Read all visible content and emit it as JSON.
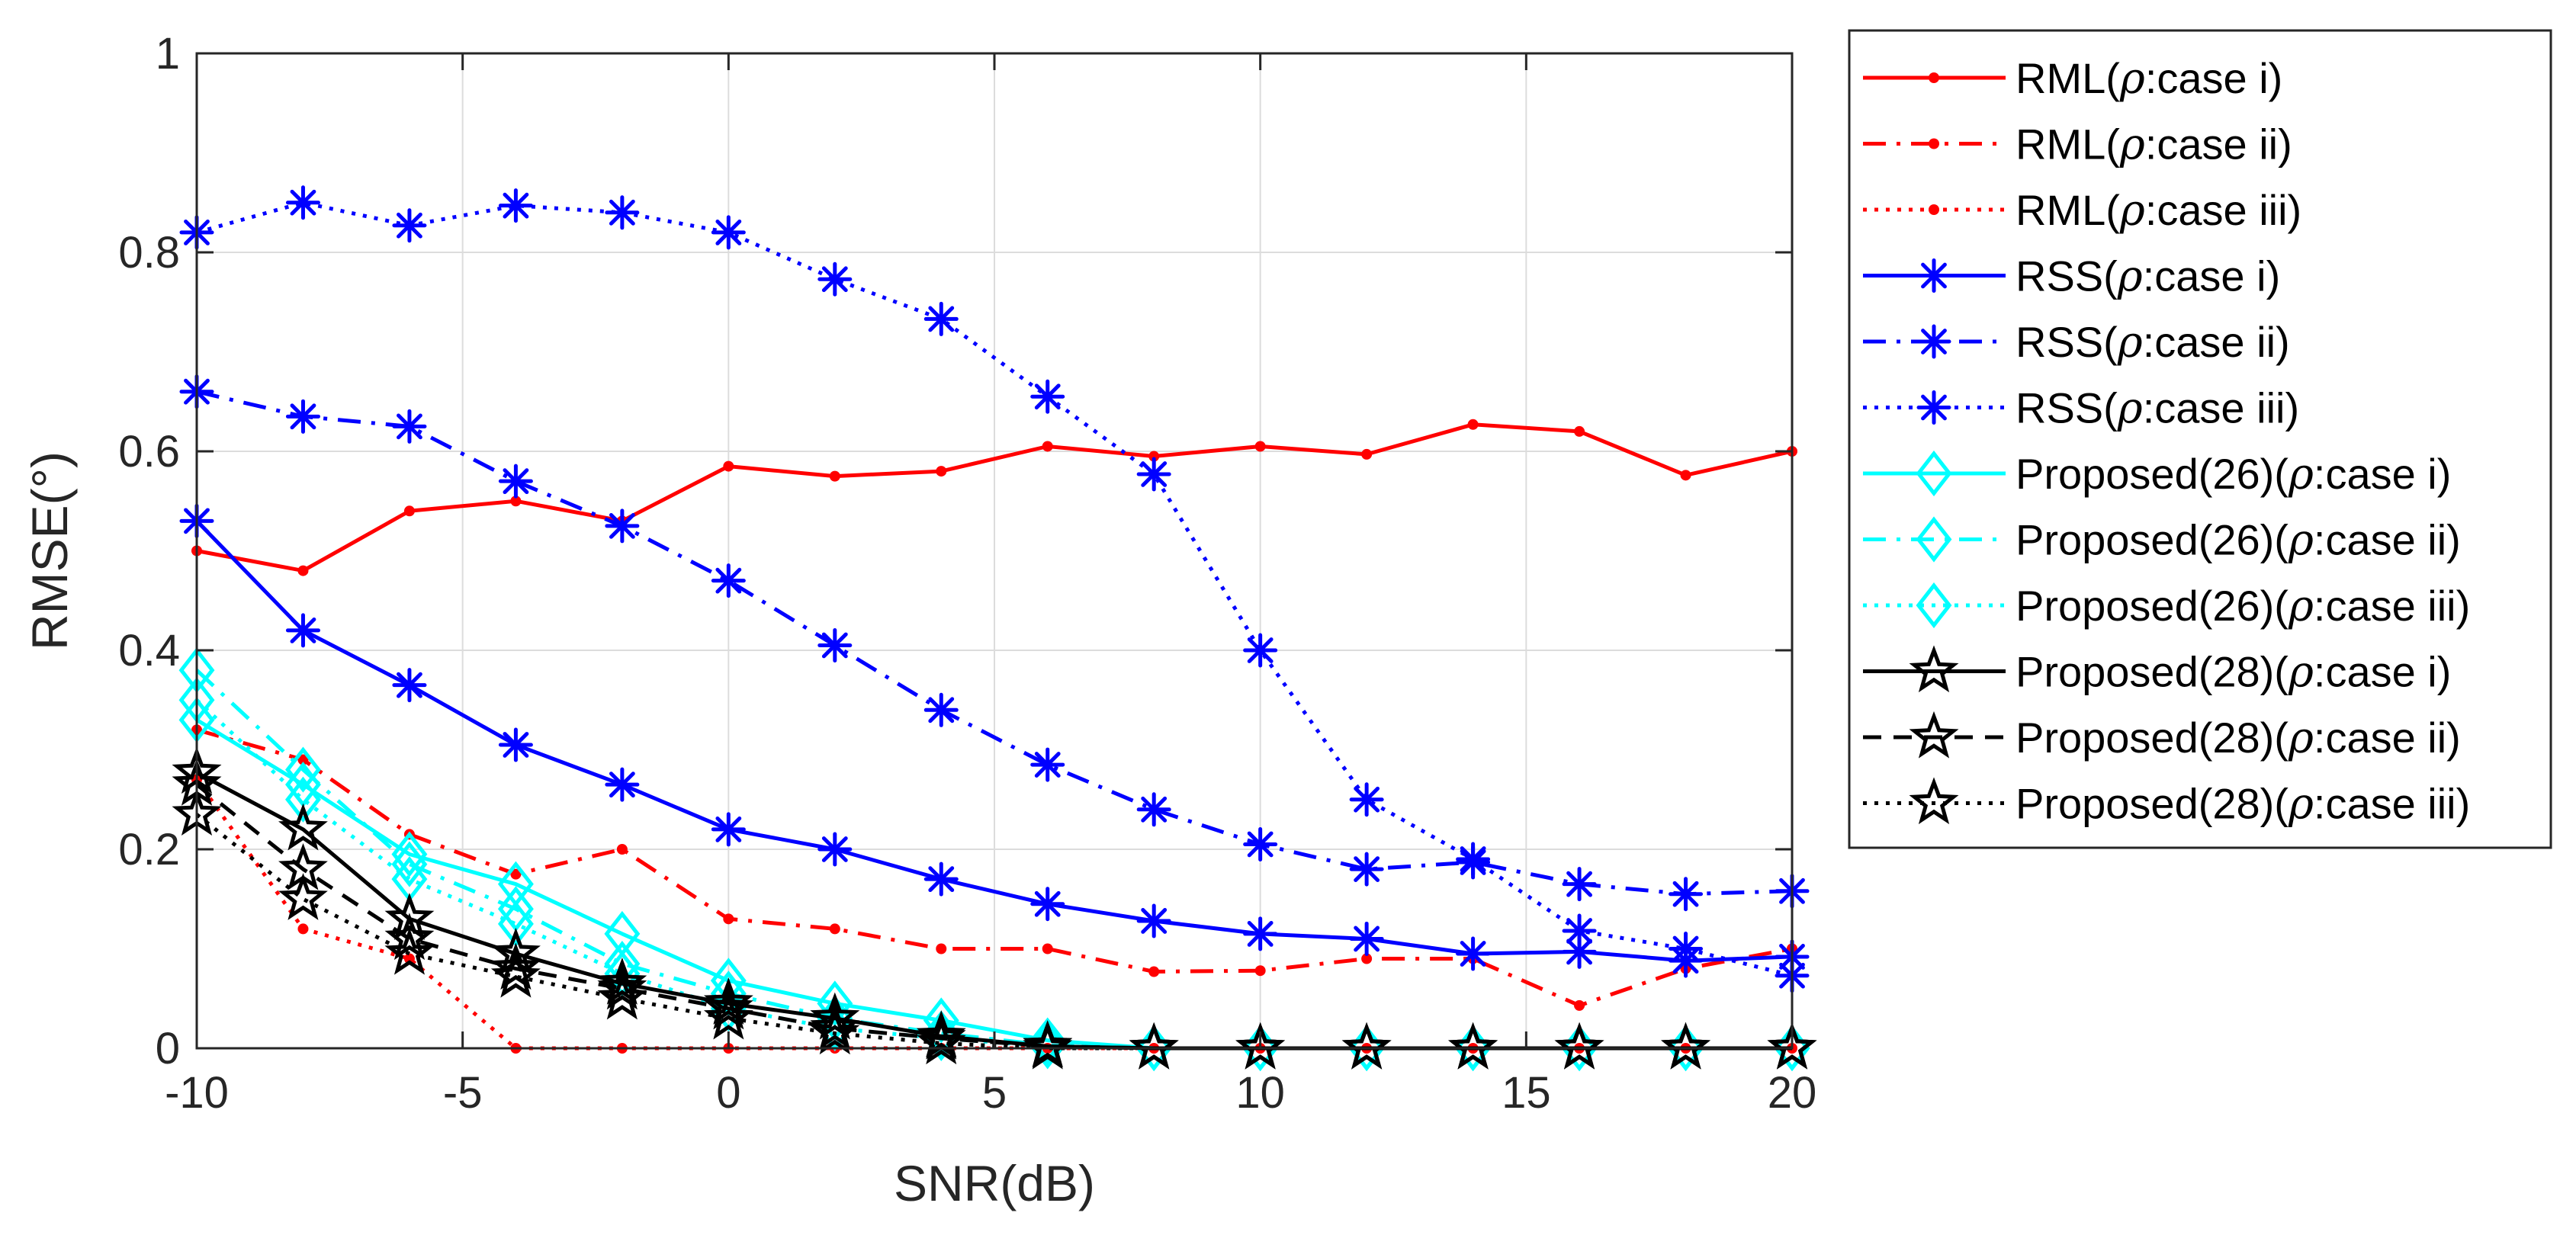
{
  "chart_data": {
    "type": "line",
    "title": "",
    "xlabel": "SNR(dB)",
    "ylabel": "RMSE(°)",
    "xlim": [
      -10,
      20
    ],
    "ylim": [
      0,
      1
    ],
    "grid": true,
    "legend_position": "outside-right",
    "x": [
      -10,
      -8,
      -6,
      -4,
      -2,
      0,
      2,
      4,
      6,
      8,
      10,
      12,
      14,
      16,
      18,
      20
    ],
    "x_tick_labels": [
      "-10",
      "-5",
      "0",
      "5",
      "10",
      "15",
      "20"
    ],
    "y_tick_labels": [
      "0",
      "0.2",
      "0.4",
      "0.6",
      "0.8",
      "1"
    ],
    "series": [
      {
        "name": "RML(ρ:case i)",
        "label_prefix": "RML(",
        "label_suffix": ":case i)",
        "color": "#ff0000",
        "line": "solid",
        "marker": "dot",
        "values": [
          0.5,
          0.48,
          0.54,
          0.55,
          0.53,
          0.585,
          0.575,
          0.58,
          0.605,
          0.595,
          0.605,
          0.597,
          0.627,
          0.62,
          0.576,
          0.6
        ]
      },
      {
        "name": "RML(ρ:case ii)",
        "label_prefix": "RML(",
        "label_suffix": ":case ii)",
        "color": "#ff0000",
        "line": "dashdot",
        "marker": "dot",
        "values": [
          0.32,
          0.29,
          0.215,
          0.175,
          0.2,
          0.13,
          0.12,
          0.1,
          0.1,
          0.077,
          0.078,
          0.09,
          0.09,
          0.043,
          0.08,
          0.1
        ]
      },
      {
        "name": "RML(ρ:case iii)",
        "label_prefix": "RML(",
        "label_suffix": ":case iii)",
        "color": "#ff0000",
        "line": "dotted",
        "marker": "dot",
        "values": [
          0.27,
          0.12,
          0.09,
          0.0,
          0.0,
          0.0,
          0.0,
          0.0,
          0.0,
          0.0,
          0.0,
          0.0,
          0.0,
          0.0,
          0.0,
          0.0
        ]
      },
      {
        "name": "RSS(ρ:case i)",
        "label_prefix": "RSS(",
        "label_suffix": ":case i)",
        "color": "#0000ff",
        "line": "solid",
        "marker": "asterisk",
        "values": [
          0.53,
          0.42,
          0.365,
          0.305,
          0.265,
          0.22,
          0.2,
          0.17,
          0.145,
          0.128,
          0.115,
          0.11,
          0.095,
          0.097,
          0.088,
          0.092
        ]
      },
      {
        "name": "RSS(ρ:case ii)",
        "label_prefix": "RSS(",
        "label_suffix": ":case ii)",
        "color": "#0000ff",
        "line": "dashdot",
        "marker": "asterisk",
        "values": [
          0.66,
          0.635,
          0.625,
          0.57,
          0.525,
          0.47,
          0.405,
          0.34,
          0.285,
          0.24,
          0.205,
          0.18,
          0.187,
          0.165,
          0.155,
          0.158
        ]
      },
      {
        "name": "RSS(ρ:case iii)",
        "label_prefix": "RSS(",
        "label_suffix": ":case iii)",
        "color": "#0000ff",
        "line": "dotted",
        "marker": "asterisk",
        "values": [
          0.82,
          0.85,
          0.827,
          0.847,
          0.84,
          0.82,
          0.773,
          0.733,
          0.655,
          0.577,
          0.4,
          0.25,
          0.19,
          0.118,
          0.1,
          0.073
        ]
      },
      {
        "name": "Proposed(26)(ρ:case i)",
        "label_prefix": "Proposed(26)(",
        "label_suffix": ":case i)",
        "color": "#00ffff",
        "line": "solid",
        "marker": "diamond",
        "values": [
          0.33,
          0.265,
          0.195,
          0.165,
          0.115,
          0.068,
          0.045,
          0.028,
          0.008,
          0.0,
          0.0,
          0.0,
          0.0,
          0.0,
          0.0,
          0.0
        ]
      },
      {
        "name": "Proposed(26)(ρ:case ii)",
        "label_prefix": "Proposed(26)(",
        "label_suffix": ":case ii)",
        "color": "#00ffff",
        "line": "dashdot",
        "marker": "diamond",
        "values": [
          0.38,
          0.28,
          0.185,
          0.14,
          0.085,
          0.055,
          0.03,
          0.015,
          0.003,
          0.0,
          0.0,
          0.0,
          0.0,
          0.0,
          0.0,
          0.0
        ]
      },
      {
        "name": "Proposed(26)(ρ:case iii)",
        "label_prefix": "Proposed(26)(",
        "label_suffix": ":case iii)",
        "color": "#00ffff",
        "line": "dotted",
        "marker": "diamond",
        "values": [
          0.35,
          0.25,
          0.17,
          0.125,
          0.075,
          0.04,
          0.02,
          0.01,
          0.002,
          0.0,
          0.0,
          0.0,
          0.0,
          0.0,
          0.0,
          0.0
        ]
      },
      {
        "name": "Proposed(28)(ρ:case i)",
        "label_prefix": "Proposed(28)(",
        "label_suffix": ":case i)",
        "color": "#000000",
        "line": "solid",
        "marker": "star",
        "values": [
          0.277,
          0.22,
          0.13,
          0.095,
          0.065,
          0.045,
          0.03,
          0.012,
          0.002,
          0.0,
          0.0,
          0.0,
          0.0,
          0.0,
          0.0,
          0.0
        ]
      },
      {
        "name": "Proposed(28)(ρ:case ii)",
        "label_prefix": "Proposed(28)(",
        "label_suffix": ":case ii)",
        "color": "#000000",
        "line": "dashed",
        "marker": "star",
        "values": [
          0.265,
          0.18,
          0.11,
          0.08,
          0.06,
          0.04,
          0.02,
          0.01,
          0.002,
          0.0,
          0.0,
          0.0,
          0.0,
          0.0,
          0.0,
          0.0
        ]
      },
      {
        "name": "Proposed(28)(ρ:case iii)",
        "label_prefix": "Proposed(28)(",
        "label_suffix": ":case iii)",
        "color": "#000000",
        "line": "dotted",
        "marker": "star",
        "values": [
          0.235,
          0.15,
          0.095,
          0.072,
          0.05,
          0.03,
          0.015,
          0.005,
          0.0,
          0.0,
          0.0,
          0.0,
          0.0,
          0.0,
          0.0,
          0.0
        ]
      }
    ]
  }
}
